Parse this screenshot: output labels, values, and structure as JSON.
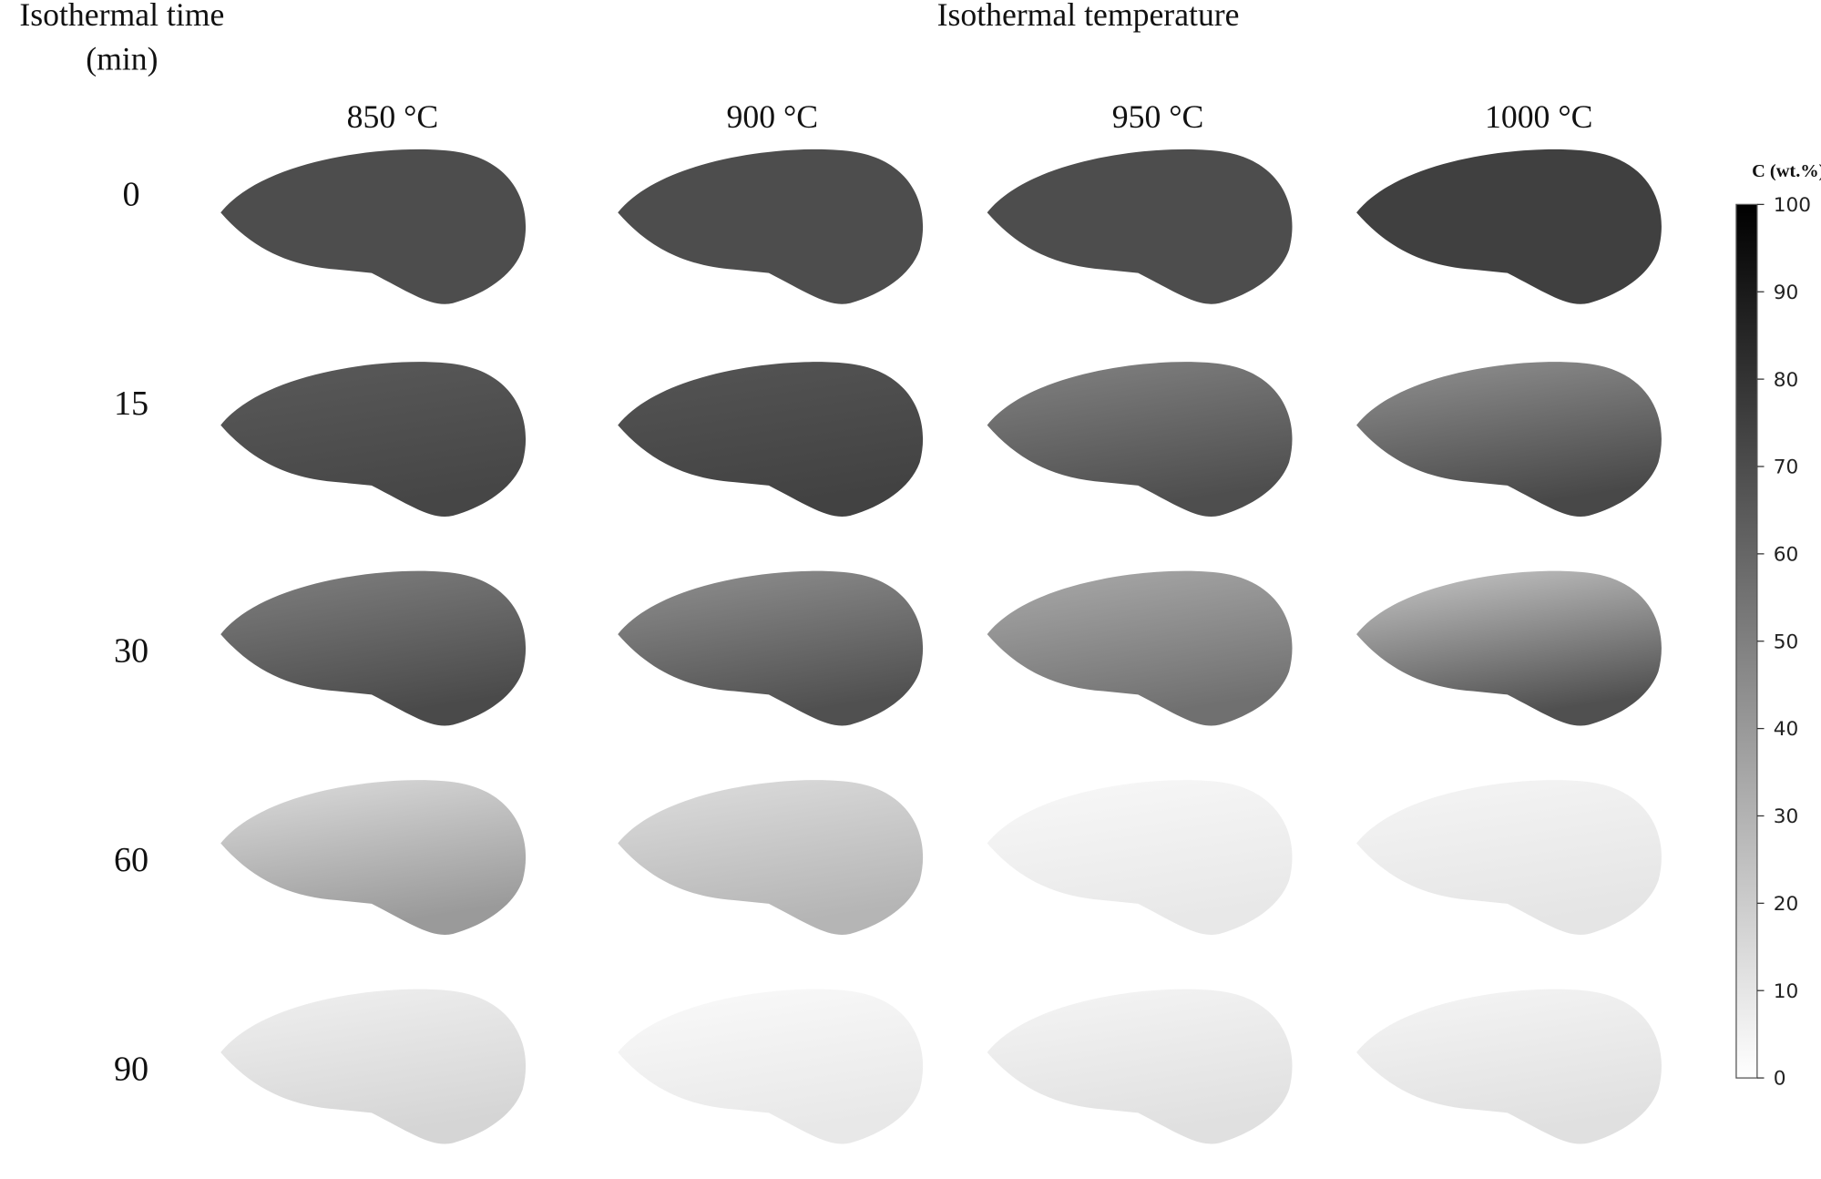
{
  "header": {
    "row_title": "Isothermal time",
    "row_unit": "(min)",
    "column_title": "Isothermal temperature"
  },
  "columns": [
    "850 °C",
    "900 °C",
    "950 °C",
    "1000 °C"
  ],
  "rows": [
    "0",
    "15",
    "30",
    "60",
    "90"
  ],
  "colorbar": {
    "title": "C (wt.%)",
    "range": [
      0,
      100
    ],
    "ticks": [
      0,
      10,
      20,
      30,
      40,
      50,
      60,
      70,
      80,
      90,
      100
    ]
  }
}
